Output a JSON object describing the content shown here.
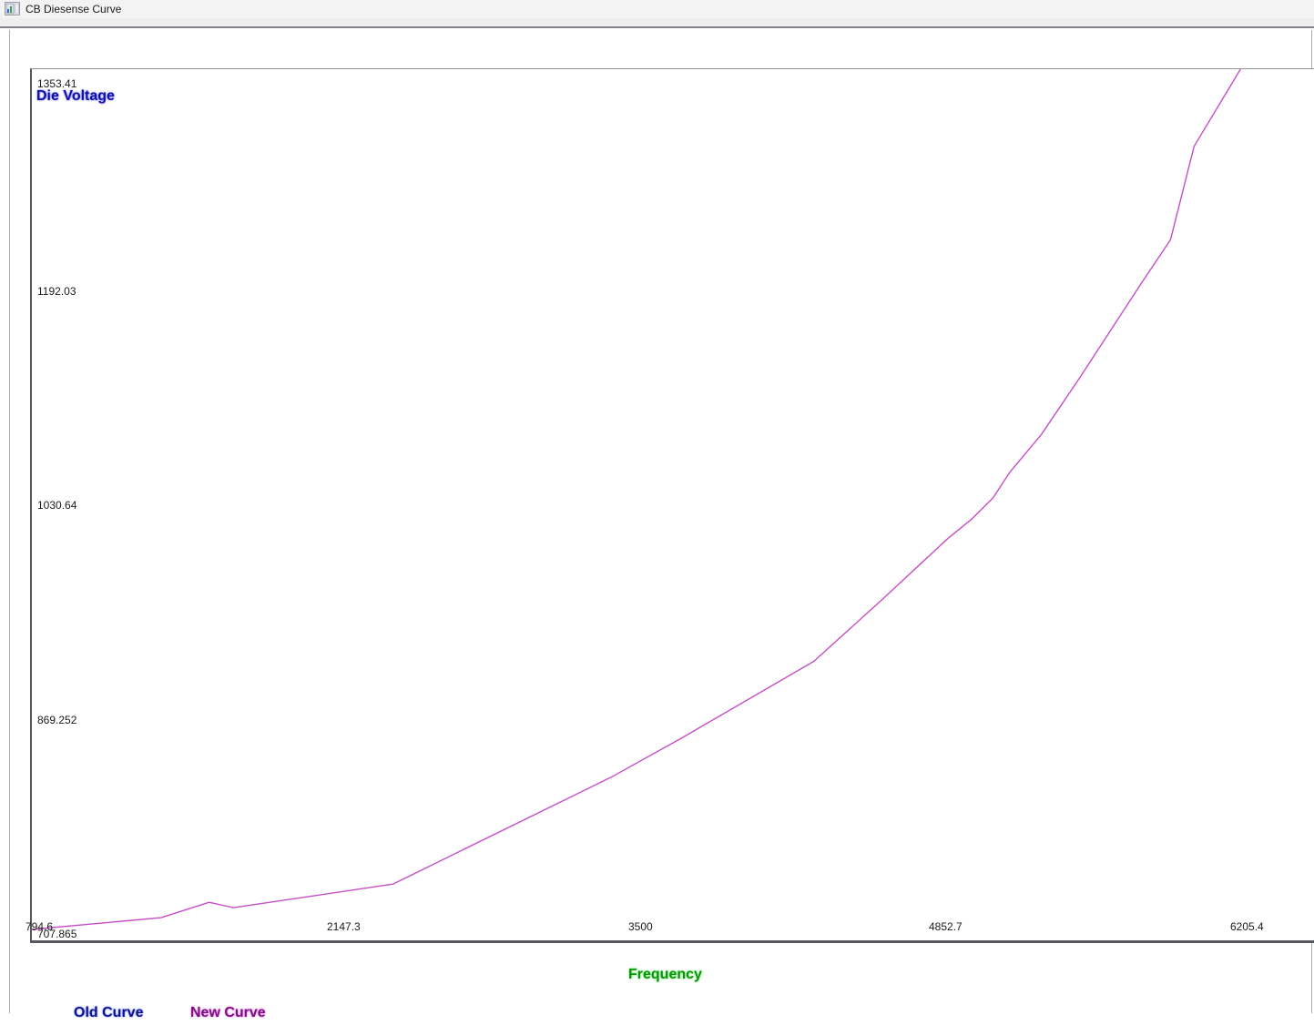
{
  "window": {
    "title": "CB Diesense Curve"
  },
  "chart_data": {
    "type": "line",
    "title": "",
    "xlabel": "Frequency",
    "ylabel": "Die Voltage",
    "xlabel_color": "#0b930b",
    "ylabel_color": "#1010a8",
    "x_ticks": [
      "794.6",
      "2147.3",
      "3500",
      "4852.7",
      "6205.4"
    ],
    "y_ticks": [
      "1353.41",
      "1192.03",
      "1030.64",
      "869.252",
      "707.865"
    ],
    "x_range": [
      794.6,
      6577.0
    ],
    "y_range": [
      707.865,
      1363.7
    ],
    "grid": false,
    "legend_position": "bottom-left",
    "series": [
      {
        "name": "New Curve",
        "color": "#c74ec7",
        "points": [
          [
            794.6,
            716.1
          ],
          [
            1375.0,
            724.9
          ],
          [
            1591.0,
            736.5
          ],
          [
            1700.0,
            732.5
          ],
          [
            2416.0,
            750.2
          ],
          [
            3396.0,
            830.7
          ],
          [
            3711.0,
            860.0
          ],
          [
            4307.0,
            918.0
          ],
          [
            4609.0,
            963.8
          ],
          [
            4907.0,
            1010.2
          ],
          [
            5017.0,
            1025.2
          ],
          [
            5111.0,
            1040.9
          ],
          [
            5185.0,
            1060.0
          ],
          [
            5328.0,
            1088.7
          ],
          [
            5507.0,
            1133.0
          ],
          [
            5777.0,
            1202.6
          ],
          [
            5908.0,
            1235.3
          ],
          [
            6014.0,
            1305.6
          ],
          [
            6222.0,
            1363.6
          ]
        ]
      }
    ],
    "legend": [
      {
        "label": "Old Curve",
        "color": "#101090"
      },
      {
        "label": "New Curve",
        "color": "#79117e"
      }
    ]
  }
}
